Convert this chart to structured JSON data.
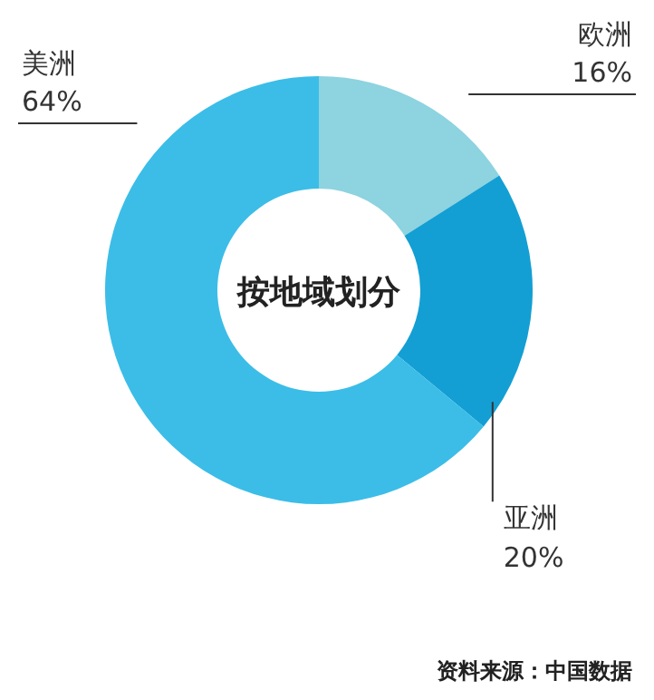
{
  "chart_data": {
    "type": "donut",
    "title": "按地域划分",
    "categories": [
      "欧洲",
      "亚洲",
      "美洲"
    ],
    "values": [
      16,
      20,
      64
    ],
    "colors": [
      "#8dd3e0",
      "#139fd3",
      "#3bbde8"
    ],
    "value_labels": [
      "16%",
      "20%",
      "64%"
    ],
    "annotations": [
      "资料来源：中国数据"
    ]
  }
}
